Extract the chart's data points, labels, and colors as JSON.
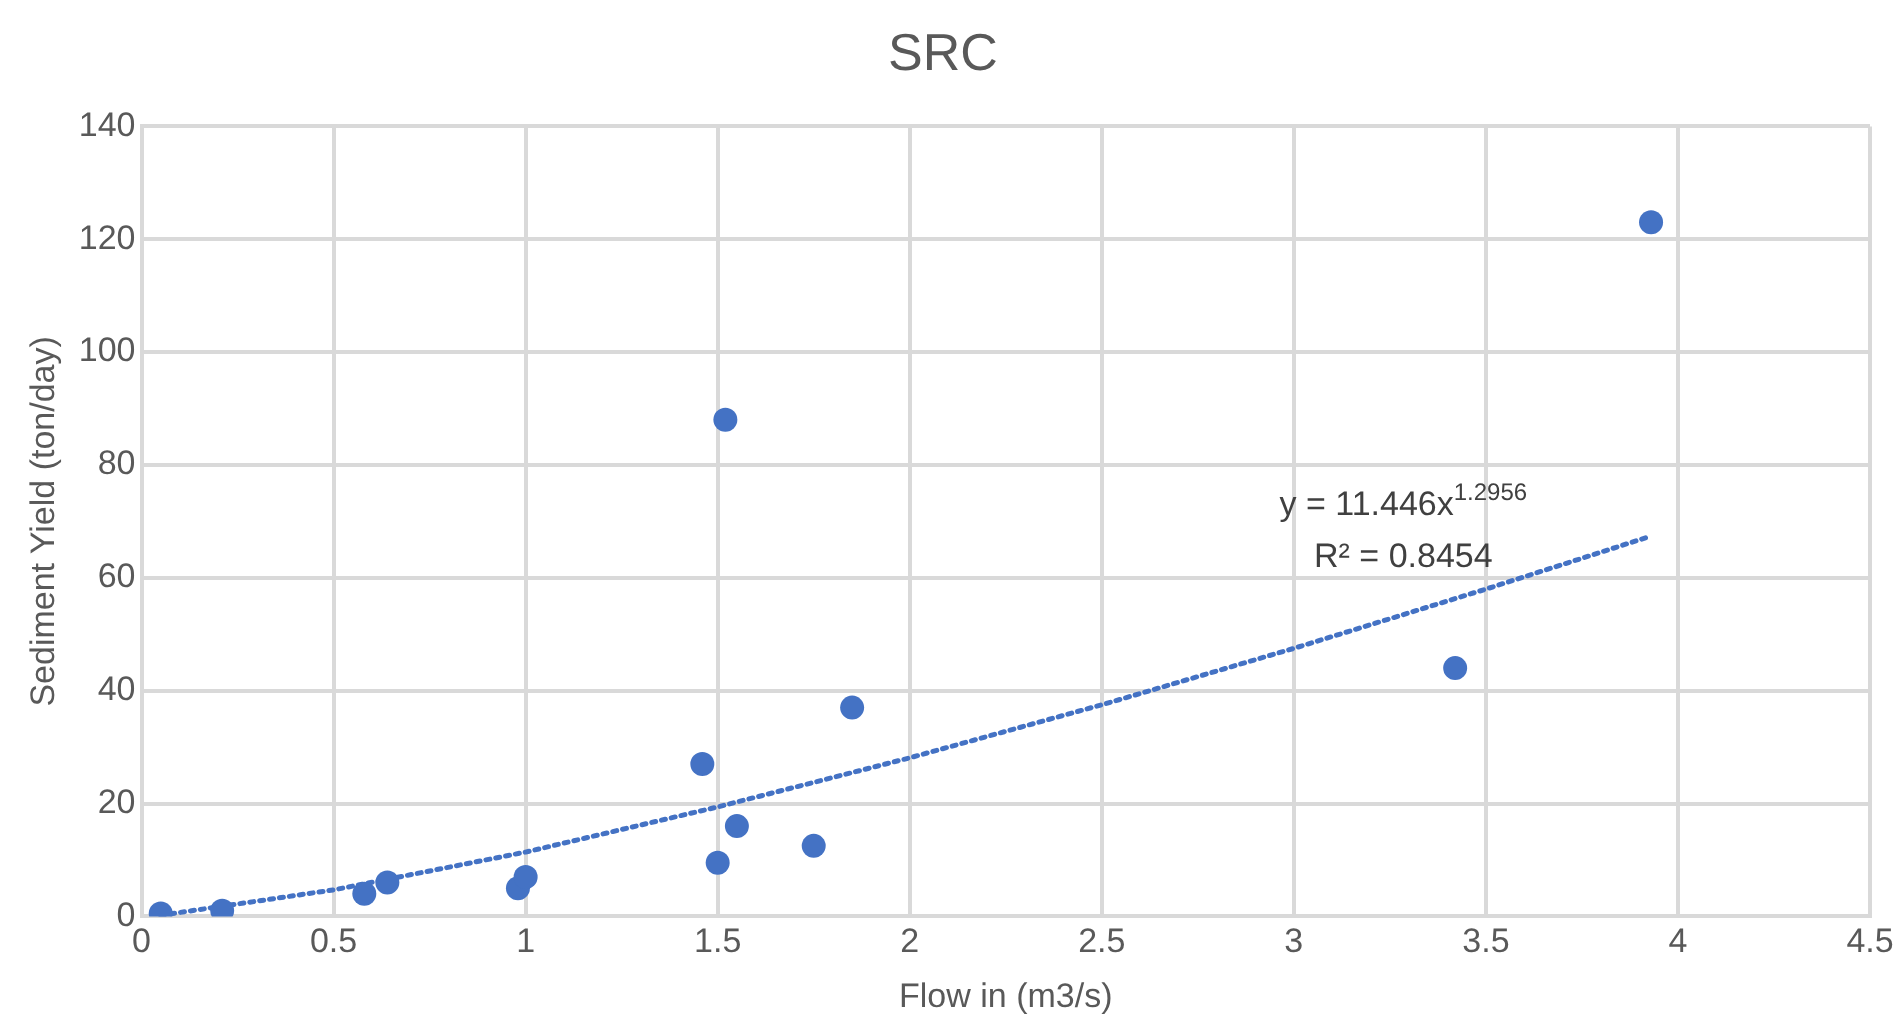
{
  "chart_data": {
    "type": "scatter",
    "title": "SRC",
    "xlabel": "Flow in (m3/s)",
    "ylabel": "Sediment Yield (ton/day)",
    "xlim": [
      0,
      4.5
    ],
    "xticks": [
      0,
      0.5,
      1,
      1.5,
      2,
      2.5,
      3,
      3.5,
      4,
      4.5
    ],
    "ylim": [
      0,
      140
    ],
    "yticks": [
      0,
      20,
      40,
      60,
      80,
      100,
      120,
      140
    ],
    "grid": true,
    "legend": false,
    "marker": "circle",
    "series": [
      {
        "color": "#4472c4",
        "x": [
          0.05,
          0.21,
          0.58,
          0.64,
          0.98,
          1.0,
          1.46,
          1.52,
          1.5,
          1.55,
          1.75,
          1.85,
          3.42,
          3.93
        ],
        "values": [
          0.5,
          1,
          4,
          6,
          5,
          7,
          27,
          88,
          9.5,
          16,
          12.5,
          37,
          44,
          123
        ]
      },
      {
        "type": "line",
        "color": "#4472c4",
        "line_style": "dotted",
        "marker": "none",
        "x": [
          0.05,
          0.5,
          1,
          1.5,
          2,
          2.5,
          3,
          3.5,
          3.93
        ],
        "values": [
          0.2,
          4.7,
          11.4,
          19.4,
          28.1,
          37.5,
          47.5,
          58,
          67.4
        ]
      }
    ],
    "annotations": [
      "y = 11.446x$^{1.2956}$",
      "R² = 0.8454"
    ]
  }
}
